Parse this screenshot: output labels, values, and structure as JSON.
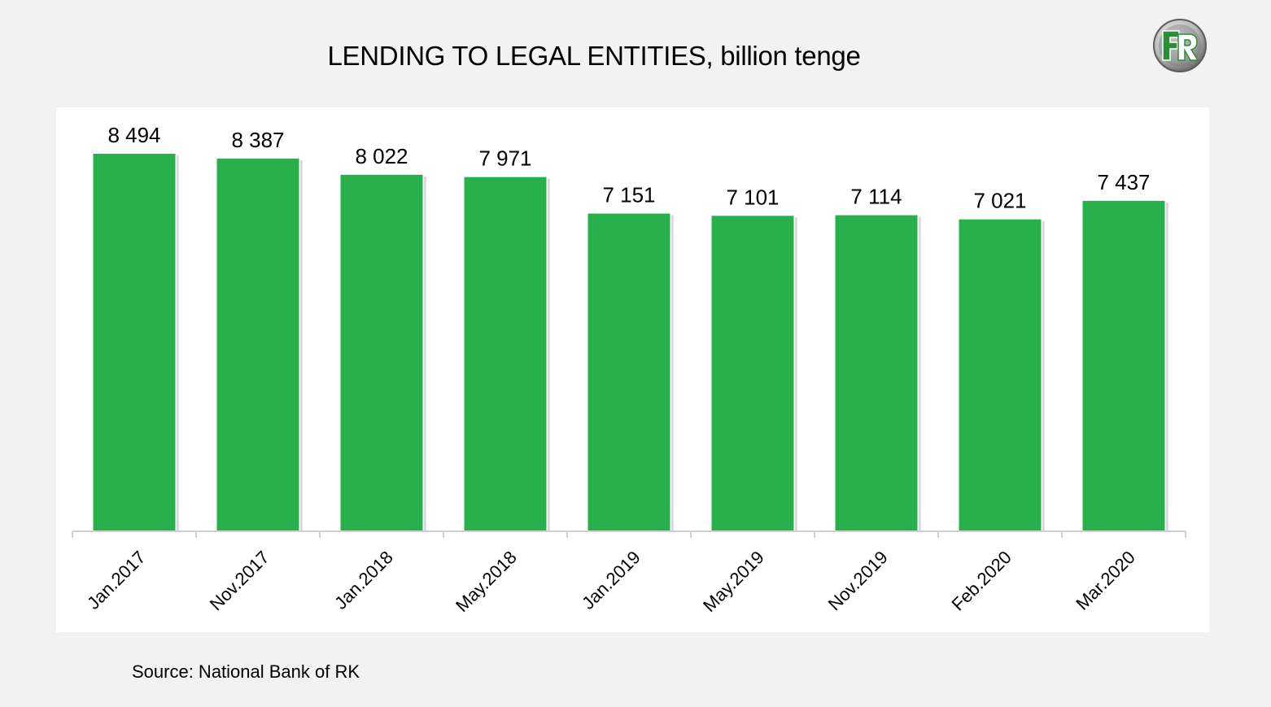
{
  "title": "LENDING TO LEGAL ENTITIES, billion tenge",
  "source": "Source: National Bank of RK",
  "logo": {
    "icon": "fr-logo-icon",
    "letters": "FR",
    "colors": {
      "f": "#2e8b3a",
      "r": "#ffffff",
      "ring": "#8a8a8a"
    }
  },
  "colors": {
    "bar": "#27b04b",
    "background": "#f2f2f2",
    "plot_background": "#ffffff",
    "axis": "#d0d0d0"
  },
  "chart_data": {
    "type": "bar",
    "title": "LENDING TO LEGAL ENTITIES, billion tenge",
    "xlabel": "",
    "ylabel": "",
    "categories": [
      "Jan.2017",
      "Nov.2017",
      "Jan.2018",
      "May.2018",
      "Jan.2019",
      "May.2019",
      "Nov.2019",
      "Feb.2020",
      "Mar.2020"
    ],
    "values": [
      8494,
      8387,
      8022,
      7971,
      7151,
      7101,
      7114,
      7021,
      7437
    ],
    "data_labels": [
      "8 494",
      "8 387",
      "8 022",
      "7 971",
      "7 151",
      "7 101",
      "7 114",
      "7 021",
      "7 437"
    ],
    "ylim": [
      0,
      8494
    ],
    "grid": false,
    "legend": "none",
    "x_tick_rotation": -45
  }
}
